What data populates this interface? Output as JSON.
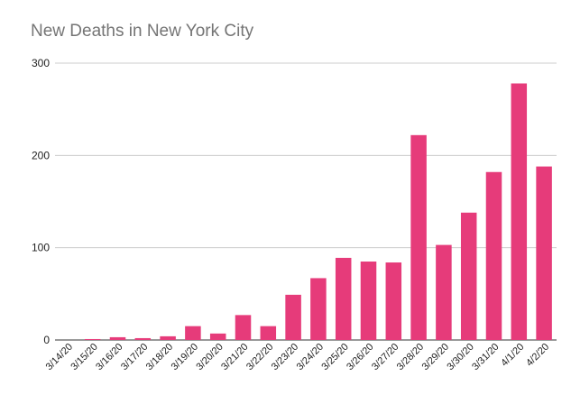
{
  "chart_data": {
    "type": "bar",
    "title": "New Deaths in New York City",
    "xlabel": "",
    "ylabel": "",
    "categories": [
      "3/14/20",
      "3/15/20",
      "3/16/20",
      "3/17/20",
      "3/18/20",
      "3/19/20",
      "3/20/20",
      "3/21/20",
      "3/22/20",
      "3/23/20",
      "3/24/20",
      "3/25/20",
      "3/26/20",
      "3/27/20",
      "3/28/20",
      "3/29/20",
      "3/30/20",
      "3/31/20",
      "4/1/20",
      "4/2/20"
    ],
    "values": [
      0,
      1,
      3,
      2,
      4,
      15,
      7,
      27,
      15,
      49,
      67,
      89,
      85,
      84,
      222,
      103,
      138,
      182,
      278,
      188
    ],
    "ylim": [
      0,
      300
    ],
    "yticks": [
      "0",
      "100",
      "200",
      "300"
    ],
    "grid": true,
    "legend": "none",
    "bar_color": "#e63b7a"
  }
}
